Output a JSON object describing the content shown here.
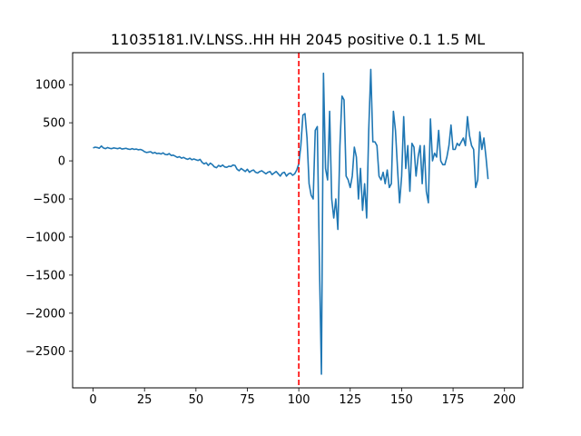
{
  "chart_data": {
    "type": "line",
    "title": "11035181.IV.LNSS..HH HH 2045 positive 0.1 1.5 ML",
    "xlabel": "",
    "ylabel": "",
    "xlim": [
      -9.95,
      208.95
    ],
    "ylim": [
      -2980,
      1420
    ],
    "x_ticks": [
      0,
      25,
      50,
      75,
      100,
      125,
      150,
      175,
      200
    ],
    "y_ticks": [
      -2500,
      -2000,
      -1500,
      -1000,
      -500,
      0,
      500,
      1000
    ],
    "y_tick_labels": [
      "−2500",
      "−2000",
      "−1500",
      "−1000",
      "−500",
      "0",
      "500",
      "1000"
    ],
    "grid": false,
    "series": [
      {
        "color": "#1f77b4",
        "x_start": 0,
        "x_step": 1,
        "values": [
          170,
          180,
          175,
          165,
          195,
          170,
          160,
          175,
          165,
          160,
          170,
          165,
          160,
          170,
          155,
          160,
          165,
          155,
          150,
          160,
          150,
          155,
          145,
          150,
          140,
          120,
          110,
          115,
          120,
          100,
          110,
          95,
          100,
          90,
          105,
          85,
          80,
          95,
          70,
          75,
          60,
          45,
          55,
          35,
          45,
          30,
          20,
          35,
          15,
          25,
          15,
          5,
          20,
          -20,
          -40,
          -25,
          -60,
          -30,
          -50,
          -80,
          -90,
          -60,
          -75,
          -55,
          -80,
          -85,
          -70,
          -75,
          -55,
          -60,
          -110,
          -130,
          -100,
          -120,
          -140,
          -110,
          -150,
          -130,
          -120,
          -150,
          -160,
          -140,
          -130,
          -150,
          -170,
          -150,
          -140,
          -180,
          -160,
          -140,
          -170,
          -200,
          -160,
          -150,
          -200,
          -170,
          -160,
          -190,
          -170,
          -120,
          -40,
          200,
          600,
          620,
          300,
          -300,
          -450,
          -500,
          400,
          450,
          -1300,
          -2800,
          1150,
          -100,
          -250,
          650,
          -500,
          -750,
          -500,
          -900,
          200,
          850,
          800,
          -200,
          -250,
          -350,
          -200,
          180,
          50,
          -500,
          -100,
          -650,
          -300,
          -750,
          400,
          1200,
          250,
          250,
          200,
          -200,
          -250,
          -150,
          -300,
          -120,
          -350,
          -300,
          650,
          400,
          -100,
          -550,
          -200,
          580,
          -100,
          200,
          -400,
          230,
          180,
          -200,
          50,
          200,
          -300,
          200,
          -400,
          -550,
          550,
          0,
          100,
          50,
          400,
          0,
          -50,
          -50,
          50,
          200,
          470,
          150,
          150,
          230,
          200,
          250,
          300,
          200,
          580,
          330,
          200,
          150,
          -350,
          -250,
          380,
          150,
          300,
          50,
          -240
        ]
      }
    ],
    "markers": [
      {
        "type": "vline",
        "x": 100,
        "color": "#ff0000",
        "style": "dashed"
      }
    ]
  }
}
